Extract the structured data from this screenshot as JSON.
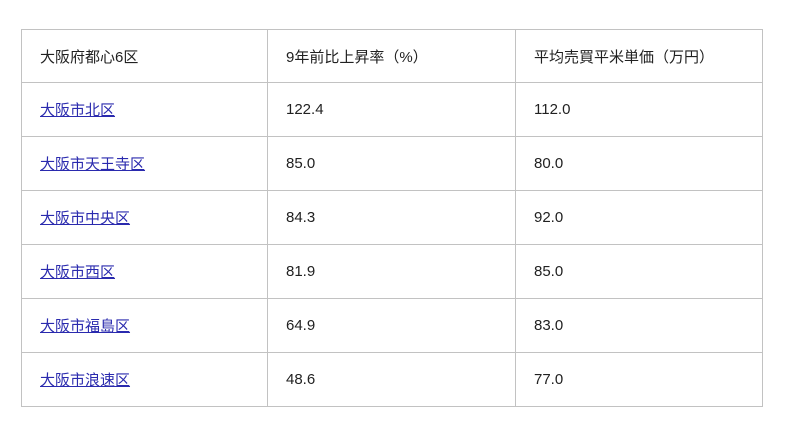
{
  "table": {
    "headers": [
      "大阪府都心6区",
      "9年前比上昇率（%）",
      "平均売買平米単価（万円）"
    ],
    "rows": [
      {
        "district": "大阪市北区",
        "increase_rate": "122.4",
        "avg_price": "112.0"
      },
      {
        "district": "大阪市天王寺区",
        "increase_rate": "85.0",
        "avg_price": "80.0"
      },
      {
        "district": "大阪市中央区",
        "increase_rate": "84.3",
        "avg_price": "92.0"
      },
      {
        "district": "大阪市西区",
        "increase_rate": "81.9",
        "avg_price": "85.0"
      },
      {
        "district": "大阪市福島区",
        "increase_rate": "64.9",
        "avg_price": "83.0"
      },
      {
        "district": "大阪市浪速区",
        "increase_rate": "48.6",
        "avg_price": "77.0"
      }
    ]
  },
  "colors": {
    "border": "#c2c2c2",
    "text": "#212121",
    "link": "#2a2aae",
    "background": "#ffffff"
  },
  "chart_data": {
    "type": "table",
    "title": "大阪府都心6区",
    "columns": [
      "大阪府都心6区",
      "9年前比上昇率（%）",
      "平均売買平米単価（万円）"
    ],
    "categories": [
      "大阪市北区",
      "大阪市天王寺区",
      "大阪市中央区",
      "大阪市西区",
      "大阪市福島区",
      "大阪市浪速区"
    ],
    "series": [
      {
        "name": "9年前比上昇率（%）",
        "values": [
          122.4,
          85.0,
          84.3,
          81.9,
          64.9,
          48.6
        ]
      },
      {
        "name": "平均売買平米単価（万円）",
        "values": [
          112.0,
          80.0,
          92.0,
          85.0,
          83.0,
          77.0
        ]
      }
    ]
  }
}
